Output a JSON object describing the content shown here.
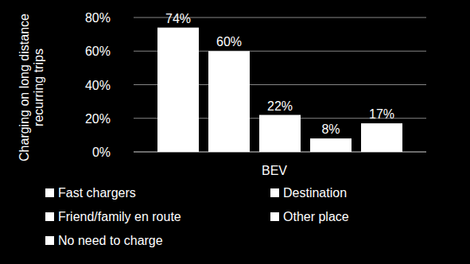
{
  "chart_data": {
    "type": "bar",
    "y_label": "Charging on long distance recurring trips",
    "categories": [
      "BEV"
    ],
    "series": [
      {
        "name": "Fast chargers",
        "color": "#ffffff",
        "values": [
          74
        ],
        "value_labels": [
          "74%"
        ]
      },
      {
        "name": "Destination",
        "color": "#ffffff",
        "values": [
          60
        ],
        "value_labels": [
          "60%"
        ]
      },
      {
        "name": "Friend/family en route",
        "color": "#ffffff",
        "values": [
          22
        ],
        "value_labels": [
          "22%"
        ]
      },
      {
        "name": "Other place",
        "color": "#ffffff",
        "values": [
          8
        ],
        "value_labels": [
          "8%"
        ]
      },
      {
        "name": "No need to charge",
        "color": "#ffffff",
        "values": [
          17
        ],
        "value_labels": [
          "17%"
        ]
      }
    ],
    "ylim": [
      0,
      80
    ],
    "yticks": [
      {
        "value": 0,
        "label": "0%"
      },
      {
        "value": 20,
        "label": "20%"
      },
      {
        "value": 40,
        "label": "40%"
      },
      {
        "value": 60,
        "label": "60%"
      },
      {
        "value": 80,
        "label": "80%"
      }
    ],
    "grid": true,
    "data_labels": true,
    "legend": "bottom"
  }
}
